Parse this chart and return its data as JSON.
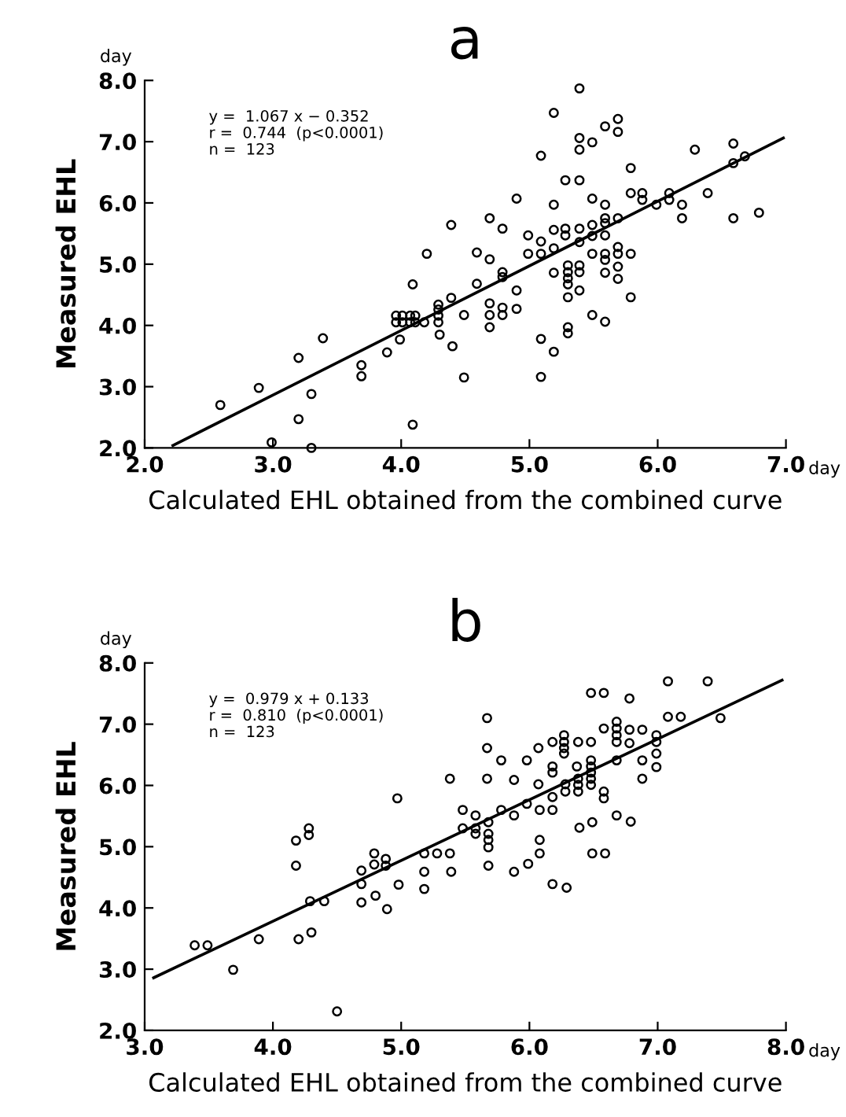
{
  "chart_data": [
    {
      "type": "scatter",
      "title": "a",
      "xlabel": "Calculated EHL obtained from the combined curve",
      "ylabel": "Measured EHL",
      "annotations": [
        "y =  1.067 x − 0.352",
        "r =  0.744  (p<0.0001)",
        "n =  123",
        "day",
        "day"
      ],
      "xlim": [
        2.0,
        7.0
      ],
      "ylim": [
        2.0,
        8.0
      ],
      "xticks": [
        {
          "value": 2,
          "label": "2.0"
        },
        {
          "value": 3,
          "label": "3.0"
        },
        {
          "value": 4,
          "label": "4.0"
        },
        {
          "value": 5,
          "label": "5.0"
        },
        {
          "value": 6,
          "label": "6.0"
        },
        {
          "value": 7,
          "label": "7.0"
        }
      ],
      "yticks": [
        {
          "value": 2,
          "label": "2.0"
        },
        {
          "value": 3,
          "label": "3.0"
        },
        {
          "value": 4,
          "label": "4.0"
        },
        {
          "value": 5,
          "label": "5.0"
        },
        {
          "value": 6,
          "label": "6.0"
        },
        {
          "value": 7,
          "label": "7.0"
        },
        {
          "value": 8,
          "label": "8.0"
        }
      ],
      "marker": "circle",
      "grid": false,
      "legend": false,
      "series": [
        {
          "color": "#000000",
          "x": [
            2.59,
            2.89,
            2.99,
            3.2,
            3.2,
            3.3,
            3.3,
            3.39,
            3.69,
            3.69,
            3.89,
            3.99,
            3.96,
            3.96,
            4.01,
            4.01,
            4.09,
            4.07,
            4.07,
            4.11,
            4.11,
            4.09,
            4.2,
            4.18,
            4.29,
            4.29,
            4.29,
            4.29,
            4.3,
            4.39,
            4.39,
            4.4,
            4.49,
            4.49,
            4.59,
            4.59,
            4.69,
            4.69,
            4.69,
            4.69,
            4.69,
            4.79,
            4.79,
            4.79,
            4.79,
            4.79,
            4.9,
            4.9,
            4.9,
            4.99,
            4.99,
            5.09,
            5.09,
            5.09,
            5.09,
            5.09,
            5.19,
            5.19,
            5.19,
            5.19,
            5.19,
            5.19,
            5.28,
            5.28,
            5.28,
            5.3,
            5.3,
            5.3,
            5.3,
            5.3,
            5.3,
            5.3,
            5.39,
            5.39,
            5.39,
            5.39,
            5.39,
            5.39,
            5.39,
            5.39,
            5.39,
            5.49,
            5.49,
            5.49,
            5.49,
            5.49,
            5.49,
            5.59,
            5.59,
            5.59,
            5.59,
            5.59,
            5.59,
            5.59,
            5.59,
            5.59,
            5.69,
            5.69,
            5.69,
            5.69,
            5.69,
            5.69,
            5.69,
            5.79,
            5.79,
            5.79,
            5.79,
            5.88,
            5.88,
            5.99,
            6.09,
            6.09,
            6.19,
            6.19,
            6.29,
            6.39,
            6.59,
            6.59,
            6.68,
            6.59,
            6.79
          ],
          "values": [
            2.7,
            2.98,
            2.09,
            3.47,
            2.47,
            2.88,
            2.0,
            3.79,
            3.35,
            3.17,
            3.56,
            3.77,
            4.16,
            4.05,
            4.16,
            4.05,
            4.67,
            4.16,
            4.05,
            4.16,
            4.05,
            2.38,
            5.17,
            4.05,
            4.34,
            4.26,
            4.16,
            4.05,
            3.85,
            5.64,
            4.45,
            3.66,
            4.17,
            3.15,
            5.19,
            4.68,
            5.75,
            5.08,
            4.36,
            4.17,
            3.97,
            5.58,
            4.87,
            4.79,
            4.29,
            4.17,
            6.07,
            4.57,
            4.27,
            5.47,
            5.17,
            6.77,
            5.37,
            5.17,
            3.78,
            3.16,
            7.47,
            5.97,
            5.56,
            5.26,
            4.86,
            3.57,
            6.37,
            5.58,
            5.47,
            4.98,
            4.87,
            4.77,
            4.67,
            4.46,
            3.97,
            3.87,
            7.87,
            7.06,
            6.87,
            6.37,
            5.58,
            5.36,
            4.98,
            4.87,
            4.57,
            6.99,
            6.07,
            5.64,
            5.46,
            5.17,
            4.17,
            7.25,
            5.97,
            5.75,
            5.67,
            5.47,
            5.17,
            5.07,
            4.86,
            4.06,
            7.37,
            7.16,
            5.75,
            5.28,
            5.17,
            4.96,
            4.76,
            6.57,
            6.16,
            5.17,
            4.46,
            6.16,
            6.05,
            5.97,
            6.16,
            6.05,
            5.97,
            5.75,
            6.87,
            6.16,
            6.97,
            6.65,
            6.76,
            5.75,
            5.84
          ]
        },
        {
          "type": "line",
          "marker": "none",
          "color": "#000000",
          "x": [
            2.22,
            6.98
          ],
          "values": [
            2.04,
            7.06
          ]
        }
      ]
    },
    {
      "type": "scatter",
      "title": "b",
      "xlabel": "Calculated EHL obtained from the combined curve",
      "ylabel": "Measured EHL",
      "annotations": [
        "y =  0.979 x + 0.133",
        "r =  0.810  (p<0.0001)",
        "n =  123",
        "day",
        "day"
      ],
      "xlim": [
        3.0,
        8.0
      ],
      "ylim": [
        2.0,
        8.0
      ],
      "xticks": [
        {
          "value": 3,
          "label": "3.0"
        },
        {
          "value": 4,
          "label": "4.0"
        },
        {
          "value": 5,
          "label": "5.0"
        },
        {
          "value": 6,
          "label": "6.0"
        },
        {
          "value": 7,
          "label": "7.0"
        },
        {
          "value": 8,
          "label": "8.0"
        }
      ],
      "yticks": [
        {
          "value": 2,
          "label": "2.0"
        },
        {
          "value": 3,
          "label": "3.0"
        },
        {
          "value": 4,
          "label": "4.0"
        },
        {
          "value": 5,
          "label": "5.0"
        },
        {
          "value": 6,
          "label": "6.0"
        },
        {
          "value": 7,
          "label": "7.0"
        },
        {
          "value": 8,
          "label": "8.0"
        }
      ],
      "marker": "circle",
      "grid": false,
      "legend": false,
      "series": [
        {
          "color": "#000000",
          "x": [
            3.39,
            3.49,
            3.69,
            3.89,
            4.18,
            4.18,
            4.2,
            4.28,
            4.28,
            4.29,
            4.3,
            4.4,
            4.5,
            4.69,
            4.69,
            4.69,
            4.79,
            4.79,
            4.8,
            4.88,
            4.88,
            4.89,
            4.97,
            4.98,
            5.18,
            5.18,
            5.18,
            5.28,
            5.38,
            5.38,
            5.39,
            5.48,
            5.48,
            5.58,
            5.58,
            5.58,
            5.67,
            5.67,
            5.67,
            5.68,
            5.68,
            5.68,
            5.68,
            5.68,
            5.78,
            5.78,
            5.88,
            5.88,
            5.88,
            5.98,
            5.98,
            5.99,
            6.07,
            6.07,
            6.08,
            6.08,
            6.08,
            6.18,
            6.18,
            6.18,
            6.18,
            6.18,
            6.18,
            6.27,
            6.27,
            6.27,
            6.27,
            6.28,
            6.28,
            6.29,
            6.38,
            6.37,
            6.38,
            6.38,
            6.38,
            6.39,
            6.48,
            6.48,
            6.48,
            6.48,
            6.48,
            6.48,
            6.48,
            6.49,
            6.49,
            6.58,
            6.58,
            6.58,
            6.58,
            6.59,
            6.68,
            6.68,
            6.68,
            6.68,
            6.68,
            6.68,
            6.78,
            6.78,
            6.78,
            6.79,
            6.88,
            6.88,
            6.88,
            6.99,
            6.99,
            6.99,
            6.99,
            7.08,
            7.08,
            7.18,
            7.39,
            7.49
          ],
          "values": [
            3.39,
            3.39,
            2.99,
            3.49,
            5.1,
            4.69,
            3.49,
            5.3,
            5.19,
            4.11,
            3.6,
            4.11,
            2.31,
            4.61,
            4.39,
            4.09,
            4.89,
            4.71,
            4.2,
            4.8,
            4.69,
            3.98,
            5.79,
            4.38,
            4.89,
            4.59,
            4.31,
            4.89,
            6.11,
            4.89,
            4.59,
            5.6,
            5.3,
            5.51,
            5.3,
            5.21,
            7.1,
            6.61,
            6.11,
            5.4,
            5.21,
            5.11,
            4.99,
            4.69,
            6.41,
            5.6,
            6.09,
            5.51,
            4.59,
            6.41,
            5.7,
            4.72,
            6.61,
            6.02,
            5.6,
            5.11,
            4.89,
            6.71,
            6.31,
            6.21,
            5.81,
            5.6,
            4.39,
            6.82,
            6.71,
            6.61,
            6.52,
            6.02,
            5.9,
            4.33,
            6.71,
            6.31,
            6.11,
            6.01,
            5.9,
            5.31,
            7.51,
            6.71,
            6.41,
            6.31,
            6.21,
            6.11,
            6.01,
            5.4,
            4.89,
            7.51,
            6.93,
            5.9,
            5.79,
            4.89,
            7.04,
            6.93,
            6.82,
            6.71,
            6.41,
            5.51,
            7.42,
            6.91,
            6.69,
            5.41,
            6.91,
            6.41,
            6.11,
            6.82,
            6.71,
            6.52,
            6.3,
            7.7,
            7.12,
            7.12,
            7.7,
            7.1
          ]
        },
        {
          "type": "line",
          "marker": "none",
          "color": "#000000",
          "x": [
            3.07,
            7.97
          ],
          "values": [
            2.86,
            7.72
          ]
        }
      ]
    }
  ]
}
